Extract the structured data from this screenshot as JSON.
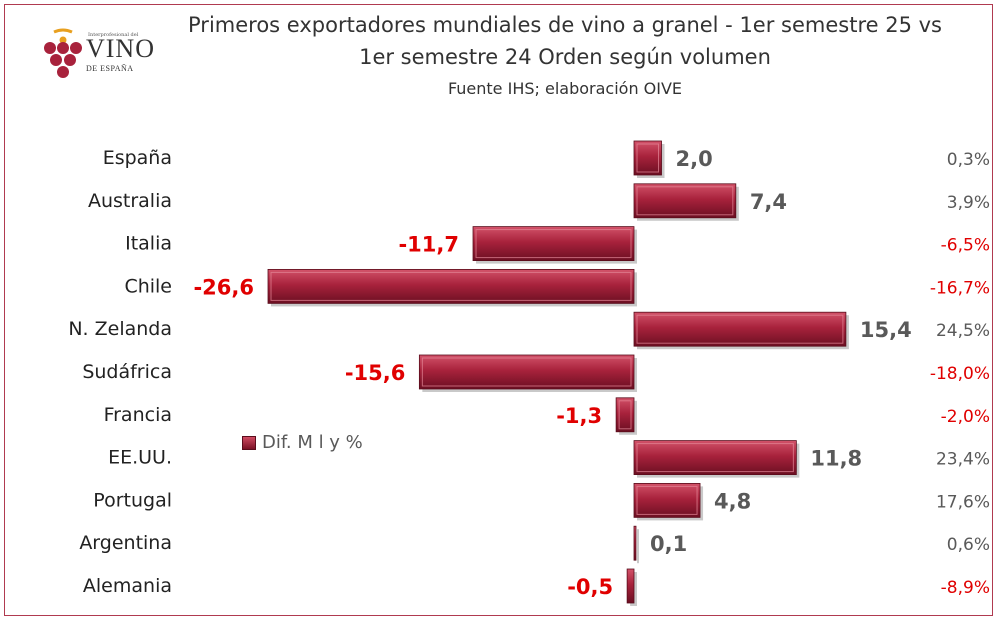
{
  "title_line1": "Primeros exportadores mundiales de vino a granel - 1er semestre 25 vs",
  "title_line2": "1er semestre 24 Orden según volumen",
  "subtitle": "Fuente IHS; elaboración OIVE",
  "logo": {
    "small": "Interprofesional del",
    "main": "VINO",
    "sub": "DE ESPAÑA"
  },
  "legend_label": "Dif. M l y %",
  "colors": {
    "bar_top": "#d25269",
    "bar_mid": "#a8223c",
    "bar_bottom": "#6b0f22",
    "negative": "#e00000",
    "positive": "#595959"
  },
  "chart_data": {
    "type": "bar",
    "orientation": "horizontal",
    "categories": [
      "España",
      "Australia",
      "Italia",
      "Chile",
      "N. Zelanda",
      "Sudáfrica",
      "Francia",
      "EE.UU.",
      "Portugal",
      "Argentina",
      "Alemania"
    ],
    "series": [
      {
        "name": "Dif. M l y %",
        "values": [
          2.0,
          7.4,
          -11.7,
          -26.6,
          15.4,
          -15.6,
          -1.3,
          11.8,
          4.8,
          0.1,
          -0.5
        ]
      }
    ],
    "value_labels": [
      "2,0",
      "7,4",
      "-11,7",
      "-26,6",
      "15,4",
      "-15,6",
      "-1,3",
      "11,8",
      "4,8",
      "0,1",
      "-0,5"
    ],
    "percent_labels": [
      "0,3%",
      "3,9%",
      "-6,5%",
      "-16,7%",
      "24,5%",
      "-18,0%",
      "-2,0%",
      "23,4%",
      "17,6%",
      "0,6%",
      "-8,9%"
    ],
    "legend": "Dif. M l y %",
    "xlim": [
      -26.6,
      15.4
    ]
  }
}
